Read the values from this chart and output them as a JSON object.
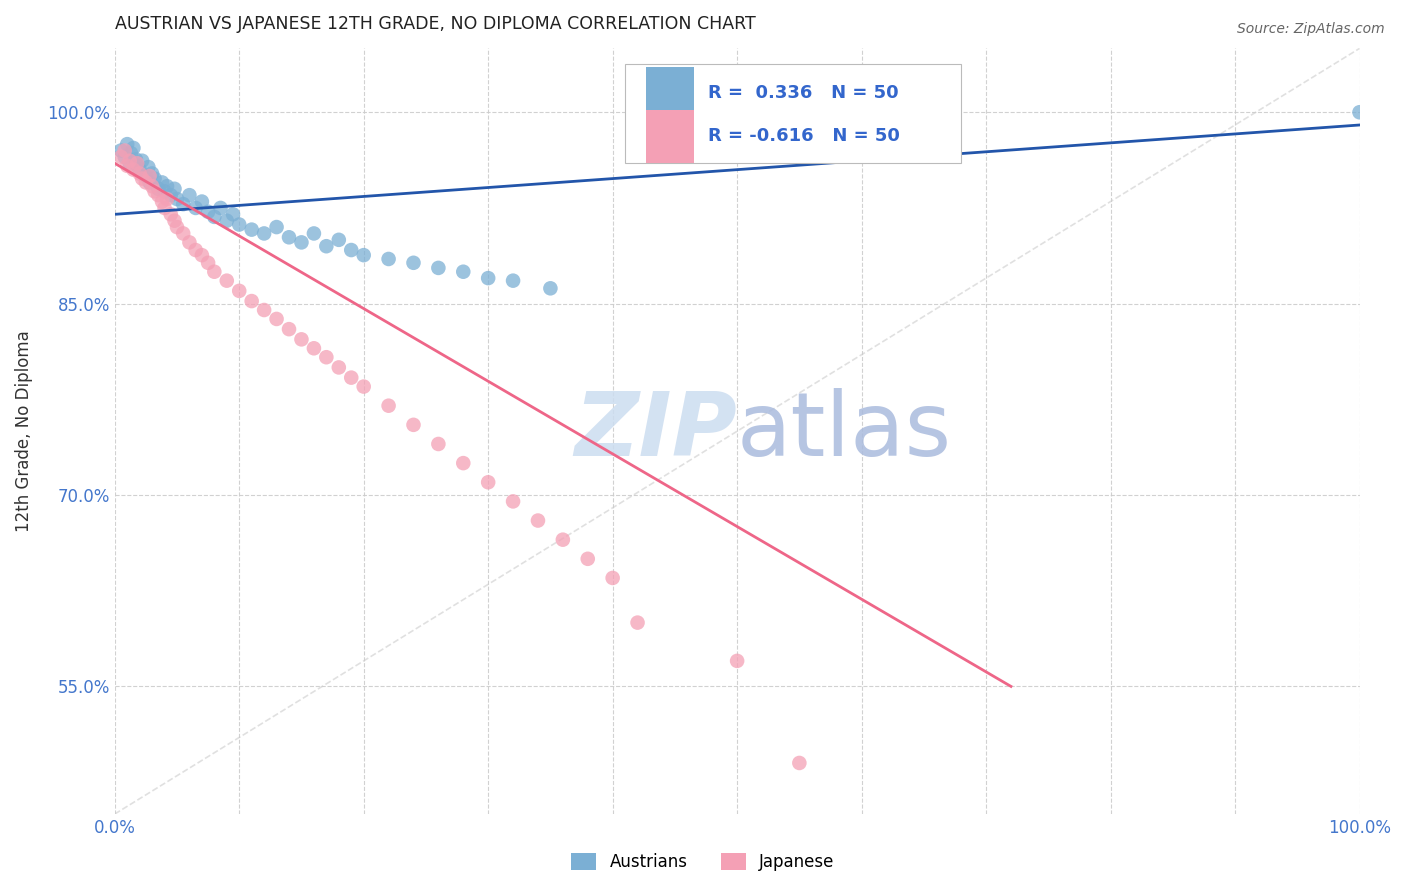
{
  "title": "AUSTRIAN VS JAPANESE 12TH GRADE, NO DIPLOMA CORRELATION CHART",
  "source": "Source: ZipAtlas.com",
  "ylabel": "12th Grade, No Diploma",
  "xlim": [
    0.0,
    1.0
  ],
  "ylim": [
    0.45,
    1.05
  ],
  "x_ticks": [
    0.0,
    0.1,
    0.2,
    0.3,
    0.4,
    0.5,
    0.6,
    0.7,
    0.8,
    0.9,
    1.0
  ],
  "x_tick_labels": [
    "0.0%",
    "",
    "",
    "",
    "",
    "",
    "",
    "",
    "",
    "",
    "100.0%"
  ],
  "y_ticks": [
    0.55,
    0.7,
    0.85,
    1.0
  ],
  "y_tick_labels": [
    "55.0%",
    "70.0%",
    "85.0%",
    "100.0%"
  ],
  "background_color": "#ffffff",
  "grid_color": "#cccccc",
  "austrians_color": "#7bafd4",
  "japanese_color": "#f4a0b5",
  "trendline_austrians_color": "#2255aa",
  "trendline_japanese_color": "#ee6688",
  "diagonal_color": "#cccccc",
  "tick_color": "#4477cc",
  "watermark_zip_color": "#ccddf0",
  "watermark_atlas_color": "#aabbdd",
  "legend_text_color": "#3366cc",
  "austrians_x": [
    0.005,
    0.008,
    0.01,
    0.012,
    0.013,
    0.015,
    0.017,
    0.018,
    0.02,
    0.022,
    0.025,
    0.027,
    0.028,
    0.03,
    0.032,
    0.035,
    0.038,
    0.04,
    0.042,
    0.045,
    0.048,
    0.05,
    0.055,
    0.06,
    0.065,
    0.07,
    0.075,
    0.08,
    0.085,
    0.09,
    0.095,
    0.1,
    0.11,
    0.12,
    0.13,
    0.14,
    0.15,
    0.16,
    0.17,
    0.18,
    0.19,
    0.2,
    0.22,
    0.24,
    0.26,
    0.28,
    0.3,
    0.32,
    0.35,
    1.0
  ],
  "austrians_y": [
    0.97,
    0.965,
    0.975,
    0.96,
    0.968,
    0.972,
    0.963,
    0.958,
    0.955,
    0.962,
    0.95,
    0.957,
    0.945,
    0.952,
    0.948,
    0.94,
    0.945,
    0.938,
    0.942,
    0.935,
    0.94,
    0.932,
    0.928,
    0.935,
    0.925,
    0.93,
    0.922,
    0.918,
    0.925,
    0.915,
    0.92,
    0.912,
    0.908,
    0.905,
    0.91,
    0.902,
    0.898,
    0.905,
    0.895,
    0.9,
    0.892,
    0.888,
    0.885,
    0.882,
    0.878,
    0.875,
    0.87,
    0.868,
    0.862,
    1.0
  ],
  "japanese_x": [
    0.005,
    0.008,
    0.01,
    0.012,
    0.015,
    0.018,
    0.02,
    0.022,
    0.025,
    0.028,
    0.03,
    0.032,
    0.035,
    0.038,
    0.04,
    0.042,
    0.045,
    0.048,
    0.05,
    0.055,
    0.06,
    0.065,
    0.07,
    0.075,
    0.08,
    0.09,
    0.1,
    0.11,
    0.12,
    0.13,
    0.14,
    0.15,
    0.16,
    0.17,
    0.18,
    0.19,
    0.2,
    0.22,
    0.24,
    0.26,
    0.28,
    0.3,
    0.32,
    0.34,
    0.36,
    0.38,
    0.4,
    0.42,
    0.5,
    0.55
  ],
  "japanese_y": [
    0.965,
    0.97,
    0.958,
    0.962,
    0.955,
    0.96,
    0.952,
    0.948,
    0.945,
    0.95,
    0.942,
    0.938,
    0.935,
    0.93,
    0.925,
    0.932,
    0.92,
    0.915,
    0.91,
    0.905,
    0.898,
    0.892,
    0.888,
    0.882,
    0.875,
    0.868,
    0.86,
    0.852,
    0.845,
    0.838,
    0.83,
    0.822,
    0.815,
    0.808,
    0.8,
    0.792,
    0.785,
    0.77,
    0.755,
    0.74,
    0.725,
    0.71,
    0.695,
    0.68,
    0.665,
    0.65,
    0.635,
    0.6,
    0.57,
    0.49
  ],
  "aus_trend_x": [
    0.0,
    1.0
  ],
  "aus_trend_y": [
    0.92,
    0.99
  ],
  "jp_trend_x": [
    0.0,
    0.72
  ],
  "jp_trend_y": [
    0.96,
    0.55
  ]
}
